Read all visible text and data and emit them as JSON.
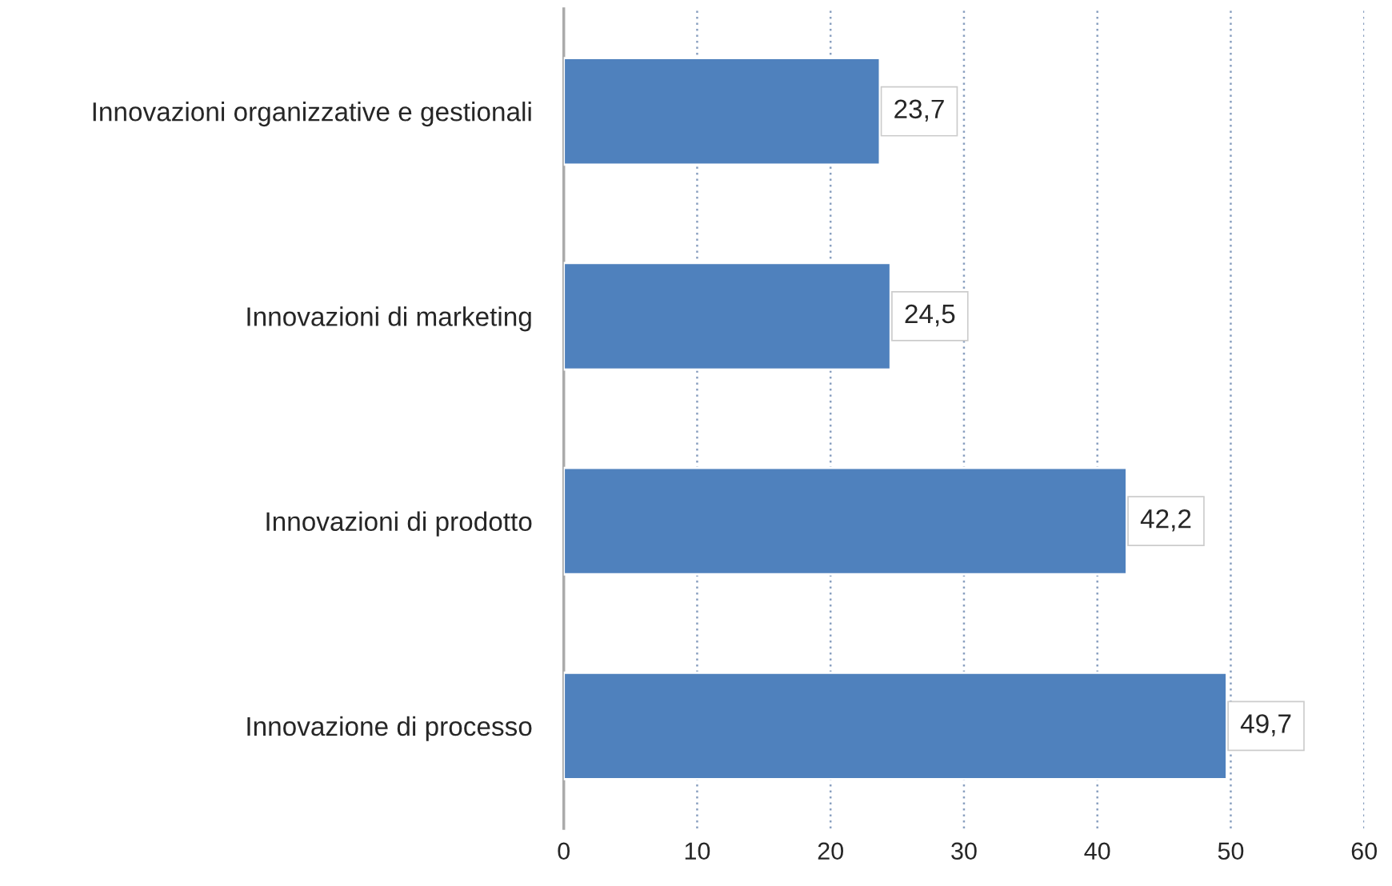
{
  "chart_data": {
    "type": "bar",
    "orientation": "horizontal",
    "categories": [
      "Innovazioni organizzative e gestionali",
      "Innovazioni di marketing",
      "Innovazioni di prodotto",
      "Innovazione di processo"
    ],
    "values": [
      23.7,
      24.5,
      42.2,
      49.7
    ],
    "value_labels": [
      "23,7",
      "24,5",
      "42,2",
      "49,7"
    ],
    "color": "#4f81bd",
    "xlim": [
      0,
      60
    ],
    "xticks": [
      0,
      10,
      20,
      30,
      40,
      50,
      60
    ],
    "grid": "x",
    "legend": false
  }
}
